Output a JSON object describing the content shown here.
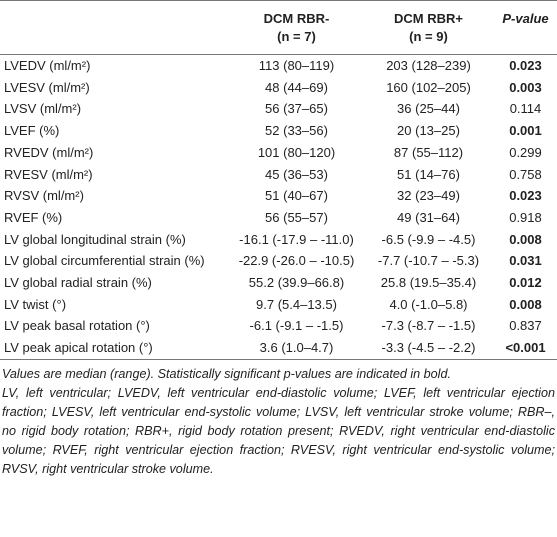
{
  "table": {
    "header": [
      {
        "line1": "",
        "line2": ""
      },
      {
        "line1": "DCM RBR-",
        "line2": "(n = 7)"
      },
      {
        "line1": "DCM RBR+",
        "line2": "(n = 9)"
      },
      {
        "line1": "P-value",
        "line2": ""
      }
    ],
    "rows": [
      {
        "cells": [
          "LVEDV (ml/m²)",
          "113 (80–119)",
          "203 (128–239)",
          "0.023"
        ],
        "bold_p": true
      },
      {
        "cells": [
          "LVESV (ml/m²)",
          "48 (44–69)",
          "160 (102–205)",
          "0.003"
        ],
        "bold_p": true
      },
      {
        "cells": [
          "LVSV (ml/m²)",
          "56 (37–65)",
          "36 (25–44)",
          "0.114"
        ],
        "bold_p": false
      },
      {
        "cells": [
          "LVEF (%)",
          "52 (33–56)",
          "20 (13–25)",
          "0.001"
        ],
        "bold_p": true
      },
      {
        "cells": [
          "RVEDV (ml/m²)",
          "101 (80–120)",
          "87 (55–112)",
          "0.299"
        ],
        "bold_p": false
      },
      {
        "cells": [
          "RVESV (ml/m²)",
          "45 (36–53)",
          "51 (14–76)",
          "0.758"
        ],
        "bold_p": false
      },
      {
        "cells": [
          "RVSV (ml/m²)",
          "51 (40–67)",
          "32 (23–49)",
          "0.023"
        ],
        "bold_p": true
      },
      {
        "cells": [
          "RVEF (%)",
          "56 (55–57)",
          "49 (31–64)",
          "0.918"
        ],
        "bold_p": false
      },
      {
        "cells": [
          "LV global longitudinal strain (%)",
          "-16.1 (-17.9 – -11.0)",
          "-6.5 (-9.9 – -4.5)",
          "0.008"
        ],
        "bold_p": true
      },
      {
        "cells": [
          "LV global circumferential strain (%)",
          "-22.9 (-26.0 – -10.5)",
          "-7.7 (-10.7 – -5.3)",
          "0.031"
        ],
        "bold_p": true
      },
      {
        "cells": [
          "LV global radial strain (%)",
          "55.2 (39.9–66.8)",
          "25.8 (19.5–35.4)",
          "0.012"
        ],
        "bold_p": true
      },
      {
        "cells": [
          "LV twist (°)",
          "9.7 (5.4–13.5)",
          "4.0 (-1.0–5.8)",
          "0.008"
        ],
        "bold_p": true
      },
      {
        "cells": [
          "LV peak basal rotation (°)",
          "-6.1 (-9.1 – -1.5)",
          "-7.3 (-8.7 – -1.5)",
          "0.837"
        ],
        "bold_p": false
      },
      {
        "cells": [
          "LV peak apical rotation (°)",
          "3.6 (1.0–4.7)",
          "-3.3 (-4.5 – -2.2)",
          "<0.001"
        ],
        "bold_p": true
      }
    ],
    "footnotes": [
      "Values are median (range). Statistically significant p-values are indicated in bold.",
      "LV, left ventricular; LVEDV, left ventricular end-diastolic volume; LVEF, left ventricular ejection fraction; LVESV, left ventricular end-systolic volume; LVSV, left ventricular stroke volume; RBR–, no rigid body rotation; RBR+, rigid body rotation present; RVEDV, right ventricular end-diastolic volume; RVEF, right ventricular ejection fraction; RVESV, right ventricular end-systolic volume; RVSV, right ventricular stroke volume."
    ]
  }
}
